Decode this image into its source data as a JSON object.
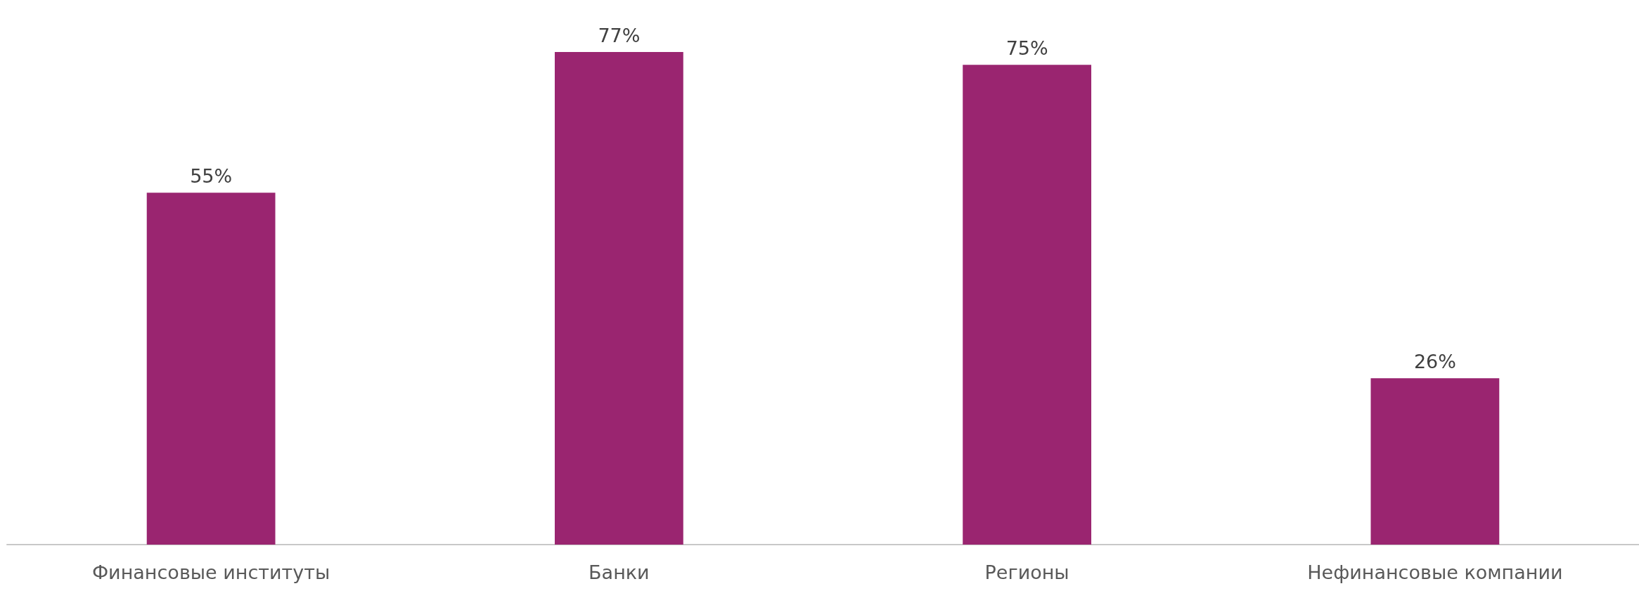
{
  "chart_data": {
    "type": "bar",
    "categories": [
      "Финансовые институты",
      "Банки",
      "Регионы",
      "Нефинансовые компании"
    ],
    "values": [
      55,
      77,
      75,
      26
    ],
    "value_labels": [
      "55%",
      "77%",
      "75%",
      "26%"
    ],
    "color": "#9a2570"
  }
}
